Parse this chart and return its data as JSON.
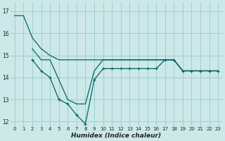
{
  "xlabel": "Humidex (Indice chaleur)",
  "bg_color": "#cce8e8",
  "grid_color": "#99cccc",
  "line_color": "#006666",
  "ylim": [
    11.8,
    17.4
  ],
  "xlim": [
    -0.5,
    23.5
  ],
  "yticks": [
    12,
    13,
    14,
    15,
    16,
    17
  ],
  "xticks": [
    0,
    1,
    2,
    3,
    4,
    5,
    6,
    7,
    8,
    9,
    10,
    11,
    12,
    13,
    14,
    15,
    16,
    17,
    18,
    19,
    20,
    21,
    22,
    23
  ],
  "s1_x": [
    0,
    1,
    2,
    3,
    4,
    5,
    6,
    7,
    8,
    9,
    10,
    11,
    12,
    13,
    14,
    15,
    16,
    17,
    18,
    19,
    20,
    21,
    22,
    23
  ],
  "s1_y": [
    16.8,
    16.8,
    15.8,
    15.3,
    15.0,
    14.8,
    14.8,
    14.8,
    14.8,
    14.8,
    14.8,
    14.8,
    14.8,
    14.8,
    14.8,
    14.8,
    14.8,
    14.8,
    14.8,
    14.3,
    14.3,
    14.3,
    14.3,
    14.3
  ],
  "s2_x": [
    2,
    3,
    4,
    5,
    6,
    7,
    8,
    9,
    10,
    11,
    12,
    13,
    14,
    15,
    16,
    17,
    18,
    19,
    20,
    21,
    22,
    23
  ],
  "s2_y": [
    15.3,
    14.8,
    14.8,
    13.9,
    13.0,
    12.8,
    12.8,
    14.3,
    14.8,
    14.8,
    14.8,
    14.8,
    14.8,
    14.8,
    14.8,
    14.8,
    14.8,
    14.3,
    14.3,
    14.3,
    14.3,
    14.3
  ],
  "s3_x": [
    2,
    3,
    4,
    5,
    6,
    7,
    8,
    9,
    10,
    11,
    12,
    13,
    14,
    15,
    16,
    17,
    18,
    19,
    20,
    21,
    22,
    23
  ],
  "s3_y": [
    14.8,
    14.3,
    14.0,
    13.0,
    12.8,
    12.3,
    11.9,
    13.9,
    14.4,
    14.4,
    14.4,
    14.4,
    14.4,
    14.4,
    14.4,
    14.8,
    14.8,
    14.3,
    14.3,
    14.3,
    14.3,
    14.3
  ]
}
